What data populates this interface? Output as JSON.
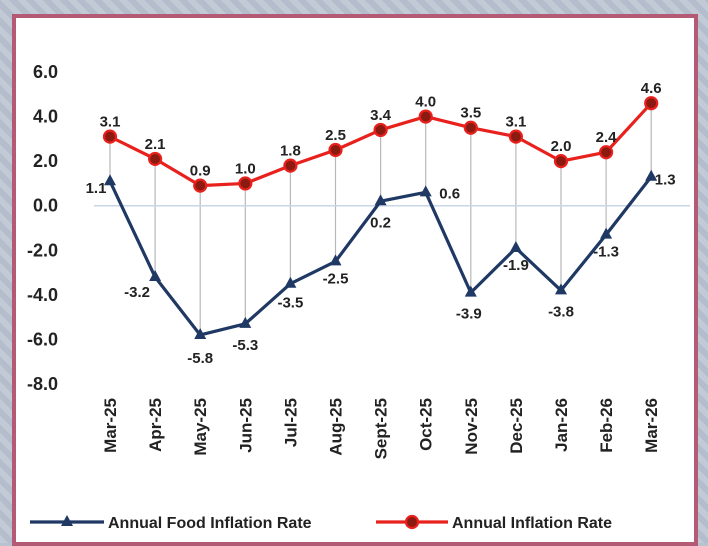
{
  "chart_data": {
    "type": "line",
    "categories": [
      "Mar-25",
      "Apr-25",
      "May-25",
      "Jun-25",
      "Jul-25",
      "Aug-25",
      "Sept-25",
      "Oct-25",
      "Nov-25",
      "Dec-25",
      "Jan-26",
      "Feb-26",
      "Mar-26"
    ],
    "series": [
      {
        "name": "Annual Food Inflation Rate",
        "color": "#1f3864",
        "marker": "triangle",
        "values": [
          1.1,
          -3.2,
          -5.8,
          -5.3,
          -3.5,
          -2.5,
          0.2,
          0.6,
          -3.9,
          -1.9,
          -3.8,
          -1.3,
          1.3
        ],
        "labels": [
          "1.1",
          "-3.2",
          "-5.8",
          "-5.3",
          "-3.5",
          "-2.5",
          "0.2",
          "0.6",
          "-3.9",
          "-1.9",
          "-3.8",
          "-1.3",
          "1.3"
        ]
      },
      {
        "name": "Annual Inflation Rate",
        "color": "#e8211d",
        "marker": "circle",
        "values": [
          3.1,
          2.1,
          0.9,
          1.0,
          1.8,
          2.5,
          3.4,
          4.0,
          3.5,
          3.1,
          2.0,
          2.4,
          4.6
        ],
        "labels": [
          "3.1",
          "2.1",
          "0.9",
          "1.0",
          "1.8",
          "2.5",
          "3.4",
          "4.0",
          "3.5",
          "3.1",
          "2.0",
          "2.4",
          "4.6"
        ]
      }
    ],
    "ylim": [
      -8.0,
      6.0
    ],
    "yticks": [
      "6.0",
      "4.0",
      "2.0",
      "0.0",
      "-2.0",
      "-4.0",
      "-6.0",
      "-8.0"
    ],
    "grid": false,
    "legend_position": "bottom"
  }
}
